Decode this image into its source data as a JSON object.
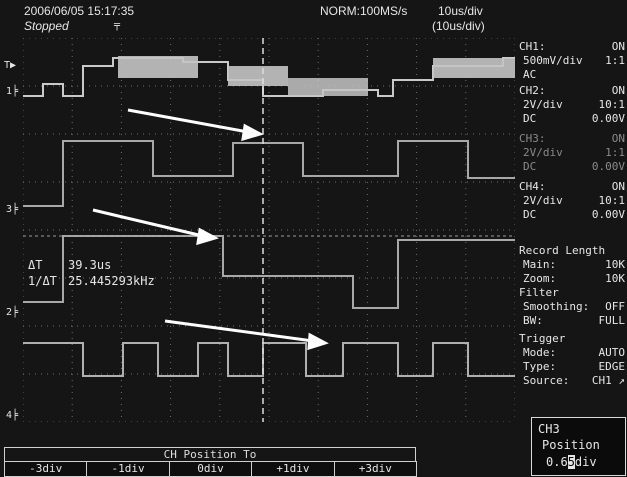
{
  "status": {
    "datetime": "2006/06/05 15:17:35",
    "state": "Stopped",
    "sample": "NORM:100MS/s",
    "timebase": "10us/div",
    "timebase_zoom": "(10us/div)"
  },
  "markers": {
    "trigger": "T",
    "ch1": "1",
    "ch3": "3",
    "ch2": "2",
    "ch4": "4"
  },
  "measure": {
    "dt_label": "ΔT",
    "dt_value": "39.3us",
    "freq_label": "1/ΔT",
    "freq_value": "25.445293kHz"
  },
  "side": {
    "ch1": {
      "label": "CH1:",
      "state": "ON",
      "vdiv": "500mV/div",
      "probe": "1:1",
      "coupling": "AC",
      "offset": ""
    },
    "ch2": {
      "label": "CH2:",
      "state": "ON",
      "vdiv": "2V/div",
      "probe": "10:1",
      "coupling": "DC",
      "offset": "0.00V"
    },
    "ch3": {
      "label": "CH3:",
      "state": "ON",
      "vdiv": "2V/div",
      "probe": "1:1",
      "coupling": "DC",
      "offset": "0.00V"
    },
    "ch4": {
      "label": "CH4:",
      "state": "ON",
      "vdiv": "2V/div",
      "probe": "10:1",
      "coupling": "DC",
      "offset": "0.00V"
    },
    "record": {
      "title": "Record Length",
      "main_label": "Main:",
      "main_value": "10K",
      "zoom_label": "Zoom:",
      "zoom_value": "10K"
    },
    "filter": {
      "title": "Filter",
      "smoothing_label": "Smoothing:",
      "smoothing_value": "OFF",
      "bw_label": "BW:",
      "bw_value": "FULL"
    },
    "trigger": {
      "title": "Trigger",
      "mode_label": "Mode:",
      "mode_value": "AUTO",
      "type_label": "Type:",
      "type_value": "EDGE",
      "source_label": "Source:",
      "source_value": "CH1"
    }
  },
  "bottom": {
    "title": "CH Position To",
    "buttons": [
      "-3div",
      "-1div",
      "0div",
      "+1div",
      "+3div"
    ]
  },
  "position_box": {
    "channel": "CH3",
    "label": "Position",
    "value_pre": "0.6",
    "value_cursor": "5",
    "value_post": "div"
  },
  "colors": {
    "background": "#151515",
    "trace": "#c9c9c9",
    "grid": "#6e6e6e",
    "text": "#e6e6e6",
    "arrow": "#ffffff"
  }
}
